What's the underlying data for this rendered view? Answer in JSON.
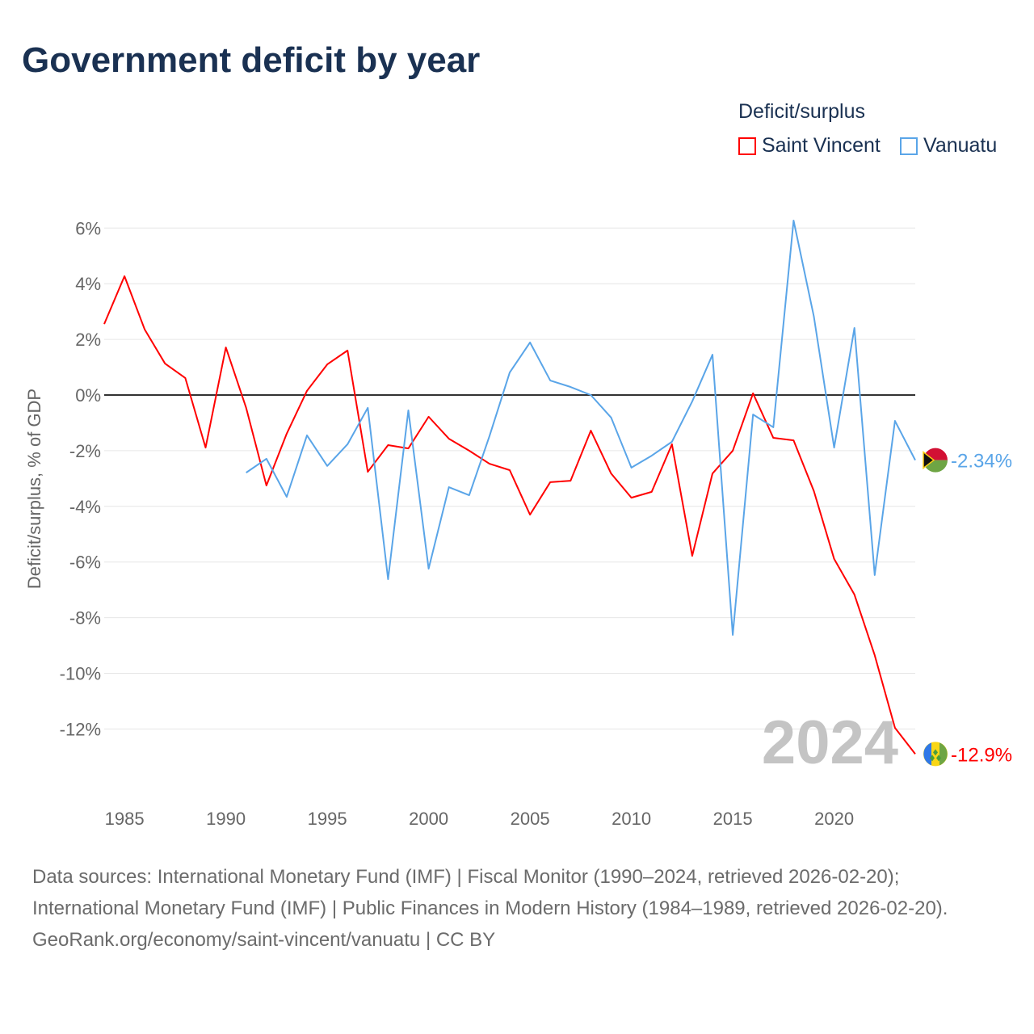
{
  "title": "Government deficit by year",
  "legend": {
    "title": "Deficit/surplus",
    "items": [
      {
        "name": "Saint Vincent",
        "color": "#ff0000"
      },
      {
        "name": "Vanuatu",
        "color": "#5aa5e8"
      }
    ]
  },
  "footer": {
    "sources": "Data sources: International Monetary Fund (IMF) | Fiscal Monitor (1990–2024, retrieved 2026-02-20); International Monetary Fund (IMF) | Public Finances in Modern History (1984–1989, retrieved 2026-02-20).",
    "link": "GeoRank.org/economy/saint-vincent/vanuatu | CC BY"
  },
  "chart_data": {
    "type": "line",
    "title": "Government deficit by year",
    "ylabel": "Deficit/surplus, % of GDP",
    "xlabel": "",
    "year_label": "2024",
    "xlim": [
      1984,
      2024
    ],
    "ylim": [
      -14,
      7
    ],
    "x_ticks": [
      1985,
      1990,
      1995,
      2000,
      2005,
      2010,
      2015,
      2020
    ],
    "y_ticks": [
      6,
      4,
      2,
      0,
      -2,
      -4,
      -6,
      -8,
      -10,
      -12
    ],
    "y_tick_labels": [
      "6%",
      "4%",
      "2%",
      "0%",
      "-2%",
      "-4%",
      "-6%",
      "-8%",
      "-10%",
      "-12%"
    ],
    "series": [
      {
        "name": "Saint Vincent",
        "color": "#ff0000",
        "end_label": "-12.9%",
        "start": 1984,
        "values": [
          2.55,
          4.27,
          2.35,
          1.13,
          0.61,
          -1.89,
          1.71,
          -0.46,
          -3.25,
          -1.39,
          0.15,
          1.1,
          1.6,
          -2.76,
          -1.8,
          -1.92,
          -0.78,
          -1.57,
          -2.0,
          -2.47,
          -2.7,
          -4.3,
          -3.13,
          -3.08,
          -1.28,
          -2.82,
          -3.69,
          -3.48,
          -1.77,
          -5.78,
          -2.82,
          -2.0,
          0.06,
          -1.54,
          -1.63,
          -3.45,
          -5.89,
          -7.17,
          -9.35,
          -11.96,
          -12.9
        ]
      },
      {
        "name": "Vanuatu",
        "color": "#5aa5e8",
        "end_label": "-2.34%",
        "start": 1991,
        "values": [
          -2.79,
          -2.29,
          -3.66,
          -1.45,
          -2.55,
          -1.77,
          -0.46,
          -6.62,
          -0.55,
          -6.24,
          -3.31,
          -3.6,
          -1.48,
          0.81,
          1.89,
          0.52,
          0.29,
          0.0,
          -0.81,
          -2.61,
          -2.18,
          -1.68,
          -0.23,
          1.45,
          -8.62,
          -0.7,
          -1.16,
          6.27,
          2.82,
          -1.89,
          2.41,
          -6.47,
          -0.93,
          -2.34
        ]
      }
    ]
  }
}
